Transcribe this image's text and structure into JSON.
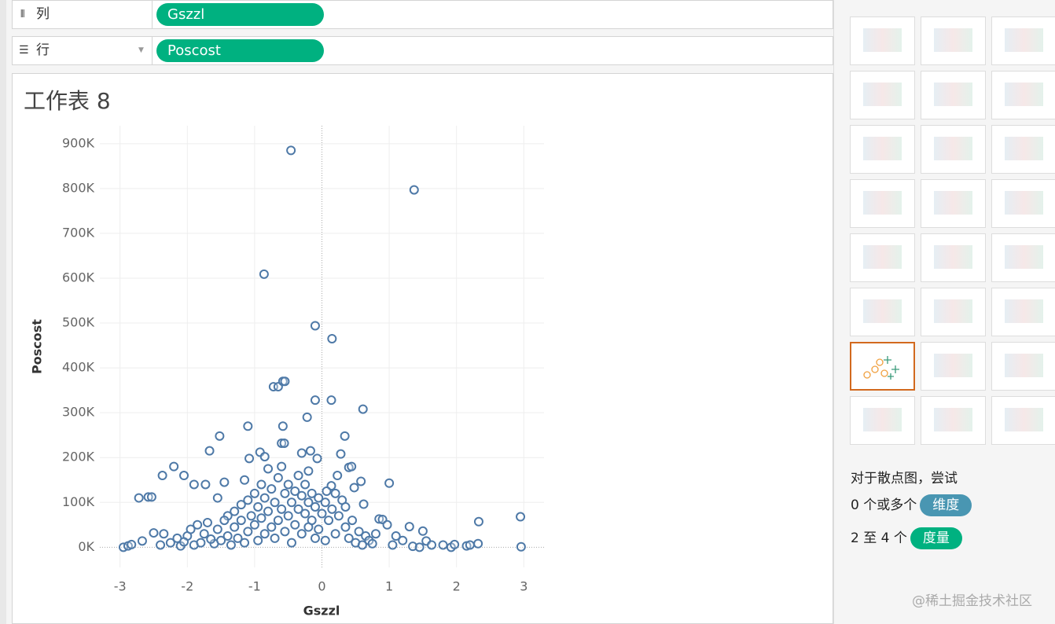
{
  "shelves": {
    "columns": {
      "label": "列",
      "pill": "Gszzl"
    },
    "rows": {
      "label": "行",
      "pill": "Poscost"
    }
  },
  "chart_data": {
    "type": "scatter",
    "title": "工作表 8",
    "x_label": "Gszzl",
    "y_label": "Poscost",
    "color": "#4e79a7",
    "grid": true,
    "xlim": [
      -3.3,
      3.3
    ],
    "xticks": [
      -3,
      -2,
      -1,
      0,
      1,
      2,
      3
    ],
    "ylim": [
      -45000,
      940000
    ],
    "yticks": [
      {
        "value": 0,
        "label": "0K"
      },
      {
        "value": 100000,
        "label": "100K"
      },
      {
        "value": 200000,
        "label": "200K"
      },
      {
        "value": 300000,
        "label": "300K"
      },
      {
        "value": 400000,
        "label": "400K"
      },
      {
        "value": 500000,
        "label": "500K"
      },
      {
        "value": 600000,
        "label": "600K"
      },
      {
        "value": 700000,
        "label": "700K"
      },
      {
        "value": 800000,
        "label": "800K"
      },
      {
        "value": 900000,
        "label": "900K"
      }
    ],
    "x": [
      -0.46,
      1.37,
      -0.86,
      -0.1,
      0.15,
      -0.72,
      -0.65,
      -0.58,
      -0.55,
      -0.1,
      0.14,
      0.61,
      -0.22,
      -1.1,
      -0.58,
      0.34,
      -1.52,
      -1.67,
      -0.6,
      -0.56,
      -0.92,
      -0.3,
      -0.17,
      -0.07,
      0.28,
      0.4,
      0.44,
      -1.08,
      -0.85,
      -2.2,
      -2.37,
      -2.05,
      -1.9,
      -1.73,
      0.23,
      0.58,
      1.0,
      0.14,
      -2.72,
      -2.58,
      -2.53,
      0.48,
      0.07,
      -1.45,
      -1.55,
      0.62,
      0.85,
      0.9,
      0.97,
      1.3,
      1.5,
      1.55,
      1.63,
      1.8,
      1.92,
      1.97,
      2.15,
      2.2,
      2.32,
      2.33,
      2.95,
      2.96,
      -2.95,
      -2.88,
      -2.83,
      -2.67,
      -2.5,
      -2.4,
      -2.35,
      -2.25,
      -2.15,
      -2.0,
      -1.85,
      -1.7,
      -1.4,
      1.1,
      1.2,
      1.35,
      1.45,
      1.05,
      -1.9,
      -1.8,
      -1.75,
      -1.6,
      -1.55,
      -1.5,
      -1.45,
      -1.4,
      -1.35,
      -1.3,
      -1.3,
      -1.25,
      -1.2,
      -1.2,
      -1.15,
      -1.1,
      -1.1,
      -1.05,
      -1.0,
      -1.0,
      -0.95,
      -0.95,
      -0.9,
      -0.9,
      -0.85,
      -0.85,
      -0.8,
      -0.8,
      -0.75,
      -0.75,
      -0.7,
      -0.7,
      -0.65,
      -0.65,
      -0.6,
      -0.6,
      -0.55,
      -0.55,
      -0.5,
      -0.5,
      -0.45,
      -0.45,
      -0.4,
      -0.4,
      -0.35,
      -0.35,
      -0.3,
      -0.3,
      -0.25,
      -0.25,
      -0.2,
      -0.2,
      -0.15,
      -0.15,
      -0.1,
      -0.1,
      -0.05,
      -0.05,
      0.0,
      0.05,
      0.05,
      0.1,
      0.15,
      0.2,
      0.25,
      0.3,
      0.35,
      0.4,
      0.45,
      0.5,
      0.55,
      0.6,
      0.65,
      0.7,
      0.75,
      0.8,
      -2.1,
      -2.05,
      -1.95,
      -1.65,
      -1.15,
      -0.2,
      0.2,
      0.35
    ],
    "values": [
      885000,
      797000,
      609000,
      494000,
      465000,
      358000,
      358000,
      370000,
      370000,
      328000,
      328000,
      308000,
      290000,
      270000,
      270000,
      248000,
      248000,
      215000,
      232000,
      232000,
      212000,
      210000,
      215000,
      198000,
      208000,
      178000,
      180000,
      198000,
      202000,
      180000,
      160000,
      160000,
      140000,
      140000,
      160000,
      147000,
      143000,
      137000,
      110000,
      112000,
      112000,
      133000,
      125000,
      145000,
      110000,
      96000,
      63000,
      62000,
      50000,
      46000,
      36000,
      14000,
      5000,
      5000,
      0,
      6000,
      3000,
      5000,
      8000,
      57000,
      68000,
      1000,
      0,
      3000,
      6000,
      14000,
      32000,
      5000,
      30000,
      10000,
      20000,
      25000,
      50000,
      55000,
      70000,
      25000,
      15000,
      2000,
      0,
      5000,
      5000,
      10000,
      30000,
      8000,
      40000,
      15000,
      60000,
      25000,
      5000,
      80000,
      45000,
      20000,
      95000,
      60000,
      10000,
      105000,
      35000,
      70000,
      120000,
      50000,
      15000,
      90000,
      140000,
      65000,
      30000,
      110000,
      175000,
      80000,
      45000,
      130000,
      100000,
      20000,
      155000,
      60000,
      180000,
      85000,
      35000,
      120000,
      140000,
      70000,
      10000,
      100000,
      125000,
      50000,
      85000,
      160000,
      115000,
      30000,
      75000,
      140000,
      100000,
      45000,
      60000,
      120000,
      20000,
      90000,
      110000,
      40000,
      75000,
      100000,
      15000,
      60000,
      85000,
      30000,
      70000,
      105000,
      45000,
      20000,
      60000,
      10000,
      35000,
      5000,
      25000,
      15000,
      8000,
      30000,
      3000,
      12000,
      40000,
      18000,
      150000,
      170000,
      120000,
      90000
    ]
  },
  "show_me": {
    "hint": "对于散点图，尝试",
    "requirements": [
      {
        "count": "0 个或多个",
        "pill": "维度"
      },
      {
        "count": "2 至 4 个",
        "pill": "度量"
      }
    ]
  },
  "watermark": "@稀土掘金技术社区"
}
